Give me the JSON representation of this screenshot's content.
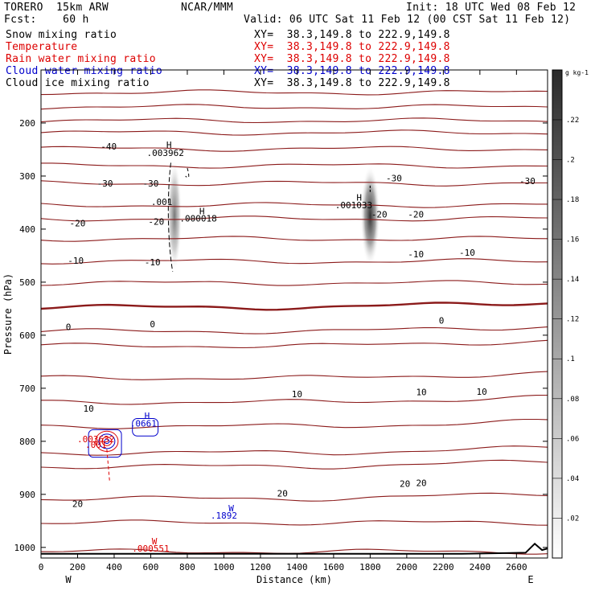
{
  "header": {
    "model": "TORERO  15km ARW",
    "institution": "NCAR/MMM",
    "init": "Init: 18 UTC Wed 08 Feb 12",
    "fcst": "Fcst:    60 h",
    "valid": "Valid: 06 UTC Sat 11 Feb 12 (00 CST Sat 11 Feb 12)",
    "fields": [
      {
        "name": "Snow mixing ratio",
        "xy": "XY=  38.3,149.8 to 222.9,149.8",
        "color": "#000000"
      },
      {
        "name": "Temperature",
        "xy": "XY=  38.3,149.8 to 222.9,149.8",
        "color": "#dd0000"
      },
      {
        "name": "Rain water mixing ratio",
        "xy": "XY=  38.3,149.8 to 222.9,149.8",
        "color": "#dd0000"
      },
      {
        "name": "Cloud water mixing ratio",
        "xy": "XY=  38.3,149.8 to 222.9,149.8",
        "color": "#0000cc"
      },
      {
        "name": "Cloud ice mixing ratio",
        "xy": "XY=  38.3,149.8 to 222.9,149.8",
        "color": "#000000"
      }
    ]
  },
  "chart_data": {
    "type": "contour",
    "xlabel": "Distance (km)",
    "ylabel": "Pressure (hPa)",
    "xlim": [
      0,
      2770
    ],
    "ylim": [
      1020,
      100
    ],
    "x_ticks": [
      0,
      200,
      400,
      600,
      800,
      1000,
      1200,
      1400,
      1600,
      1800,
      2000,
      2200,
      2400,
      2600
    ],
    "y_ticks": [
      200,
      300,
      400,
      500,
      600,
      700,
      800,
      900,
      1000
    ],
    "x_end_labels": {
      "left": "W",
      "right": "E"
    },
    "colorbar": {
      "units": "g kg-1",
      "ticks": [
        ".02",
        ".04",
        ".06",
        ".08",
        ".1",
        ".12",
        ".14",
        ".16",
        ".18",
        ".2",
        ".22"
      ],
      "min": 0,
      "max": 0.245
    },
    "temperature_contours": [
      {
        "label": "-40",
        "label_x": 370,
        "label_p": 250
      },
      {
        "label": "-30",
        "label_x": 350,
        "label_p": 320,
        "extra_labels": [
          {
            "x": 600,
            "p": 320
          },
          {
            "x": 1930,
            "p": 310
          },
          {
            "x": 2660,
            "p": 315
          }
        ]
      },
      {
        "label": "-20",
        "label_x": 200,
        "label_p": 395,
        "extra_labels": [
          {
            "x": 630,
            "p": 392
          },
          {
            "x": 1850,
            "p": 378
          },
          {
            "x": 2050,
            "p": 378
          }
        ]
      },
      {
        "label": "-10",
        "label_x": 190,
        "label_p": 465,
        "extra_labels": [
          {
            "x": 610,
            "p": 468
          },
          {
            "x": 2050,
            "p": 453
          },
          {
            "x": 2330,
            "p": 450
          }
        ]
      },
      {
        "label": "0",
        "label_x": 150,
        "label_p": 590,
        "extra_labels": [
          {
            "x": 610,
            "p": 585
          },
          {
            "x": 2190,
            "p": 578
          }
        ]
      },
      {
        "label": "10",
        "label_x": 260,
        "label_p": 744,
        "extra_labels": [
          {
            "x": 1400,
            "p": 717
          },
          {
            "x": 2080,
            "p": 713
          },
          {
            "x": 2410,
            "p": 712
          }
        ]
      },
      {
        "label": "20",
        "label_x": 200,
        "label_p": 924,
        "extra_labels": [
          {
            "x": 1320,
            "p": 904
          },
          {
            "x": 1990,
            "p": 886
          },
          {
            "x": 2080,
            "p": 884
          }
        ]
      }
    ],
    "annotations": [
      {
        "text": "H",
        "x": 700,
        "p": 247,
        "color": "#000000"
      },
      {
        "text": ".003962",
        "x": 680,
        "p": 262,
        "color": "#000000"
      },
      {
        "text": ".001",
        "x": 660,
        "p": 355,
        "color": "#000000"
      },
      {
        "text": "H",
        "x": 880,
        "p": 372,
        "color": "#000000"
      },
      {
        "text": ".000018",
        "x": 860,
        "p": 386,
        "color": "#000000"
      },
      {
        "text": "H",
        "x": 1740,
        "p": 346,
        "color": "#000000"
      },
      {
        "text": ".001033",
        "x": 1710,
        "p": 361,
        "color": "#000000"
      },
      {
        "text": "H",
        "x": 580,
        "p": 758,
        "color": "#0000cc"
      },
      {
        "text": ".0661",
        "x": 560,
        "p": 772,
        "color": "#0000cc"
      },
      {
        "text": ".003632",
        "x": 300,
        "p": 802,
        "color": "#dd0000"
      },
      {
        "text": ".001",
        "x": 300,
        "p": 812,
        "color": "#dd0000"
      },
      {
        "text": "W",
        "x": 1040,
        "p": 932,
        "color": "#0000cc"
      },
      {
        "text": ".1892",
        "x": 1000,
        "p": 946,
        "color": "#0000cc"
      },
      {
        "text": "W",
        "x": 620,
        "p": 994,
        "color": "#dd0000"
      },
      {
        "text": ".000551",
        "x": 600,
        "p": 1008,
        "color": "#dd0000"
      }
    ],
    "snow_maxima": [
      {
        "x": 730,
        "p_top": 270,
        "p_bottom": 480,
        "value": 0.04
      },
      {
        "x": 1800,
        "p_top": 280,
        "p_bottom": 470,
        "value": 0.22
      }
    ]
  }
}
